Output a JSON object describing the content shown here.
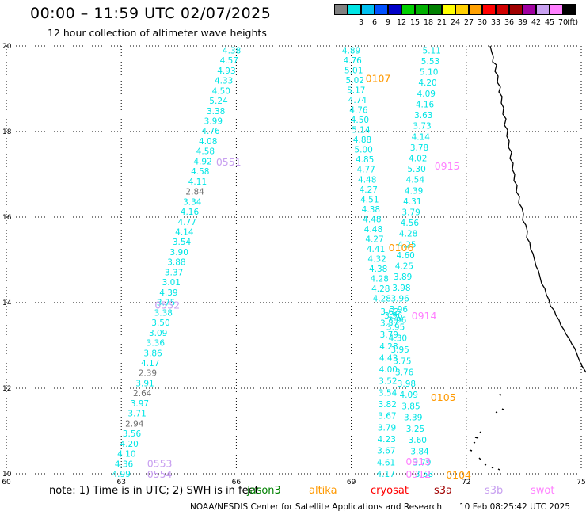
{
  "header": {
    "title": "00:00 – 11:59 UTC 02/07/2025",
    "subtitle": "12 hour collection of altimeter wave heights"
  },
  "colorbar": {
    "unit": "(ft)",
    "entries": [
      {
        "label": "",
        "color": "#808080"
      },
      {
        "label": "3",
        "color": "#00e5e5"
      },
      {
        "label": "6",
        "color": "#00c0f0"
      },
      {
        "label": "9",
        "color": "#0050ff"
      },
      {
        "label": "12",
        "color": "#0000c8"
      },
      {
        "label": "15",
        "color": "#00d000"
      },
      {
        "label": "18",
        "color": "#00b000"
      },
      {
        "label": "21",
        "color": "#008000"
      },
      {
        "label": "24",
        "color": "#ffff00"
      },
      {
        "label": "27",
        "color": "#ffd000"
      },
      {
        "label": "30",
        "color": "#ffa000"
      },
      {
        "label": "33",
        "color": "#ff0000"
      },
      {
        "label": "36",
        "color": "#d00000"
      },
      {
        "label": "39",
        "color": "#a00000"
      },
      {
        "label": "42",
        "color": "#a000a0"
      },
      {
        "label": "45",
        "color": "#c8a0f0"
      },
      {
        "label": "70",
        "color": "#ff80ff"
      },
      {
        "label": "",
        "color": "#000000"
      }
    ]
  },
  "map": {
    "lon_range": [
      60,
      75
    ],
    "lat_range": [
      10,
      20
    ],
    "lon_ticks": [
      "60",
      "63",
      "66",
      "69",
      "72",
      "75"
    ],
    "lat_ticks": [
      "20",
      "18",
      "16",
      "14",
      "12",
      "10"
    ],
    "colors": {
      "cyan": "#00e5e5",
      "gray": "#707070",
      "orange": "#ff9900",
      "violet": "#c8a0f0",
      "pink": "#ff80ff"
    },
    "tracks": [
      {
        "color": "cyan",
        "lon0": 65.88,
        "lat0": 19.9,
        "lon1": 63.0,
        "lat1": 10.0,
        "values": [
          "4.38",
          "4.57",
          "4.93",
          "4.33",
          "4.50",
          "5.24",
          "3.38",
          "3.99",
          "4.76",
          "4.08",
          "4.58",
          "4.92",
          "4.58",
          "4.11",
          "2.84",
          "3.34",
          "4.16",
          "4.77",
          "4.14",
          "3.54",
          "3.90",
          "3.88",
          "3.37",
          "3.01",
          "4.39",
          "3.75",
          "3.38",
          "3.50",
          "3.09",
          "3.36",
          "3.86",
          "4.17",
          "2.39",
          "3.91",
          "2.64",
          "3.97",
          "3.71",
          "2.94",
          "3.56",
          "4.20",
          "4.10",
          "4.36",
          "4.99"
        ]
      },
      {
        "color": "cyan",
        "lon0": 69.0,
        "lat0": 19.9,
        "lon1": 69.8,
        "lat1": 14.1,
        "values": [
          "4.89",
          "4.76",
          "5.01",
          "5.02",
          "5.17",
          "4.74",
          "4.76",
          "4.50",
          "5.14",
          "4.88",
          "5.00",
          "4.85",
          "4.77",
          "4.48",
          "4.27",
          "4.51",
          "4.38",
          "4.48",
          "4.48",
          "4.27",
          "4.41",
          "4.32",
          "4.38",
          "4.28",
          "4.28",
          "4.28"
        ]
      },
      {
        "color": "cyan",
        "lon0": 71.1,
        "lat0": 19.9,
        "lon1": 70.2,
        "lat1": 13.6,
        "values": [
          "5.11",
          "5.53",
          "5.10",
          "4.20",
          "4.09",
          "4.16",
          "3.63",
          "3.73",
          "4.14",
          "3.78",
          "4.02",
          "5.30",
          "4.54",
          "4.39",
          "4.31",
          "3.79",
          "4.56",
          "4.28",
          "4.25",
          "4.60",
          "4.25",
          "3.89",
          "3.98",
          "3.96",
          "3.96",
          "3.96"
        ]
      },
      {
        "color": "cyan",
        "lon0": 70.0,
        "lat0": 13.8,
        "lon1": 69.9,
        "lat1": 10.0,
        "values": [
          "3.62",
          "3.57",
          "3.79",
          "4.28",
          "4.43",
          "4.00",
          "3.52",
          "3.54",
          "3.82",
          "3.67",
          "3.79",
          "4.23",
          "3.67",
          "4.61",
          "4.17"
        ]
      },
      {
        "color": "cyan",
        "lon0": 70.1,
        "lat0": 13.7,
        "lon1": 70.9,
        "lat1": 10.0,
        "values": [
          "3.96",
          "3.95",
          "4.30",
          "3.95",
          "3.75",
          "3.76",
          "3.98",
          "4.09",
          "3.85",
          "3.39",
          "3.25",
          "3.60",
          "3.84",
          "3.79",
          "3.58"
        ]
      }
    ],
    "gray_values": [
      "2.84",
      "2.39",
      "2.64",
      "2.94"
    ],
    "labels": [
      {
        "text": "0107",
        "color": "orange",
        "lon": 69.7,
        "lat": 19.25
      },
      {
        "text": "0551",
        "color": "violet",
        "lon": 65.8,
        "lat": 17.3
      },
      {
        "text": "0915",
        "color": "pink",
        "lon": 71.5,
        "lat": 17.2
      },
      {
        "text": "0106",
        "color": "orange",
        "lon": 70.3,
        "lat": 15.3
      },
      {
        "text": "0552",
        "color": "violet",
        "lon": 64.2,
        "lat": 13.95
      },
      {
        "text": "0914",
        "color": "pink",
        "lon": 70.9,
        "lat": 13.7
      },
      {
        "text": "0105",
        "color": "orange",
        "lon": 71.4,
        "lat": 11.8
      },
      {
        "text": "0913",
        "color": "pink",
        "lon": 70.75,
        "lat": 10.3
      },
      {
        "text": "0553",
        "color": "violet",
        "lon": 64.0,
        "lat": 10.25
      },
      {
        "text": "0912",
        "color": "pink",
        "lon": 70.75,
        "lat": 10.0
      },
      {
        "text": "0554",
        "color": "violet",
        "lon": 64.0,
        "lat": 10.0
      },
      {
        "text": "0104",
        "color": "orange",
        "lon": 71.8,
        "lat": 9.98
      }
    ]
  },
  "footer": {
    "note": "note:  1) Time is in UTC; 2) SWH is in feet",
    "legend": [
      {
        "name": "jason3",
        "color": "#008000"
      },
      {
        "name": "altika",
        "color": "#ff9900"
      },
      {
        "name": "cryosat",
        "color": "#ff0000"
      },
      {
        "name": "s3a",
        "color": "#a00000"
      },
      {
        "name": "s3b",
        "color": "#c8a0f0"
      },
      {
        "name": "swot",
        "color": "#ff80ff"
      }
    ],
    "credit": "NOAA/NESDIS Center for Satellite Applications and Research",
    "timestamp": "10 Feb 08:25:42 UTC 2025"
  }
}
